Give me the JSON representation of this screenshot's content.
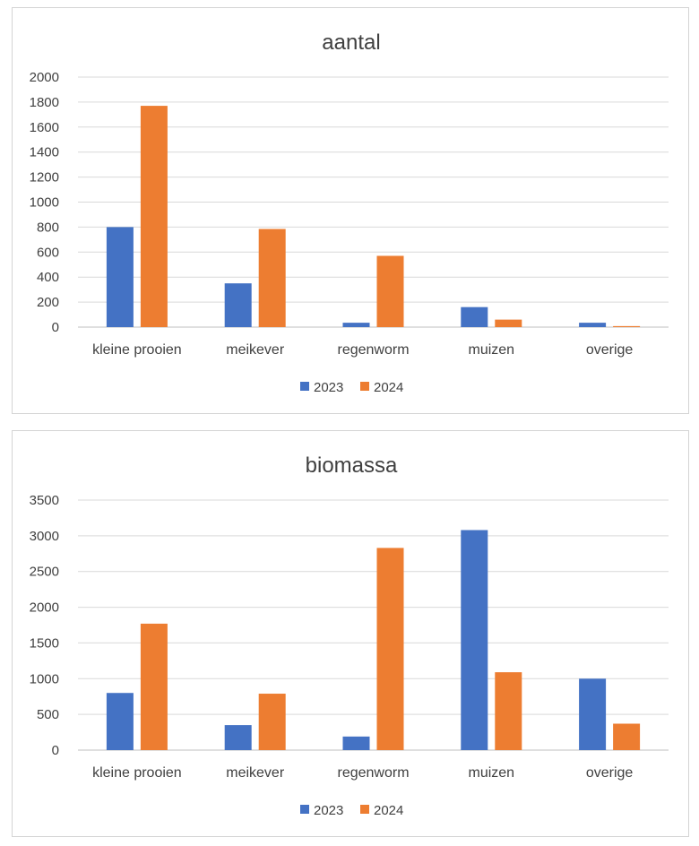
{
  "colors": {
    "2023": "#4472c4",
    "2024": "#ed7d31"
  },
  "chart_data": [
    {
      "type": "bar",
      "title": "aantal",
      "categories": [
        "kleine prooien",
        "meikever",
        "regenworm",
        "muizen",
        "overige"
      ],
      "series": [
        {
          "name": "2023",
          "values": [
            800,
            350,
            35,
            160,
            35
          ]
        },
        {
          "name": "2024",
          "values": [
            1770,
            785,
            570,
            60,
            8
          ]
        }
      ],
      "yticks": [
        0,
        200,
        400,
        600,
        800,
        1000,
        1200,
        1400,
        1600,
        1800,
        2000
      ],
      "ylim": [
        0,
        2000
      ],
      "xlabel": "",
      "ylabel": "",
      "grid": true,
      "legend": "bottom"
    },
    {
      "type": "bar",
      "title": "biomassa",
      "categories": [
        "kleine prooien",
        "meikever",
        "regenworm",
        "muizen",
        "overige"
      ],
      "series": [
        {
          "name": "2023",
          "values": [
            800,
            350,
            190,
            3080,
            1000
          ]
        },
        {
          "name": "2024",
          "values": [
            1770,
            790,
            2830,
            1090,
            370
          ]
        }
      ],
      "yticks": [
        0,
        500,
        1000,
        1500,
        2000,
        2500,
        3000,
        3500
      ],
      "ylim": [
        0,
        3500
      ],
      "xlabel": "",
      "ylabel": "",
      "grid": true,
      "legend": "bottom"
    }
  ]
}
